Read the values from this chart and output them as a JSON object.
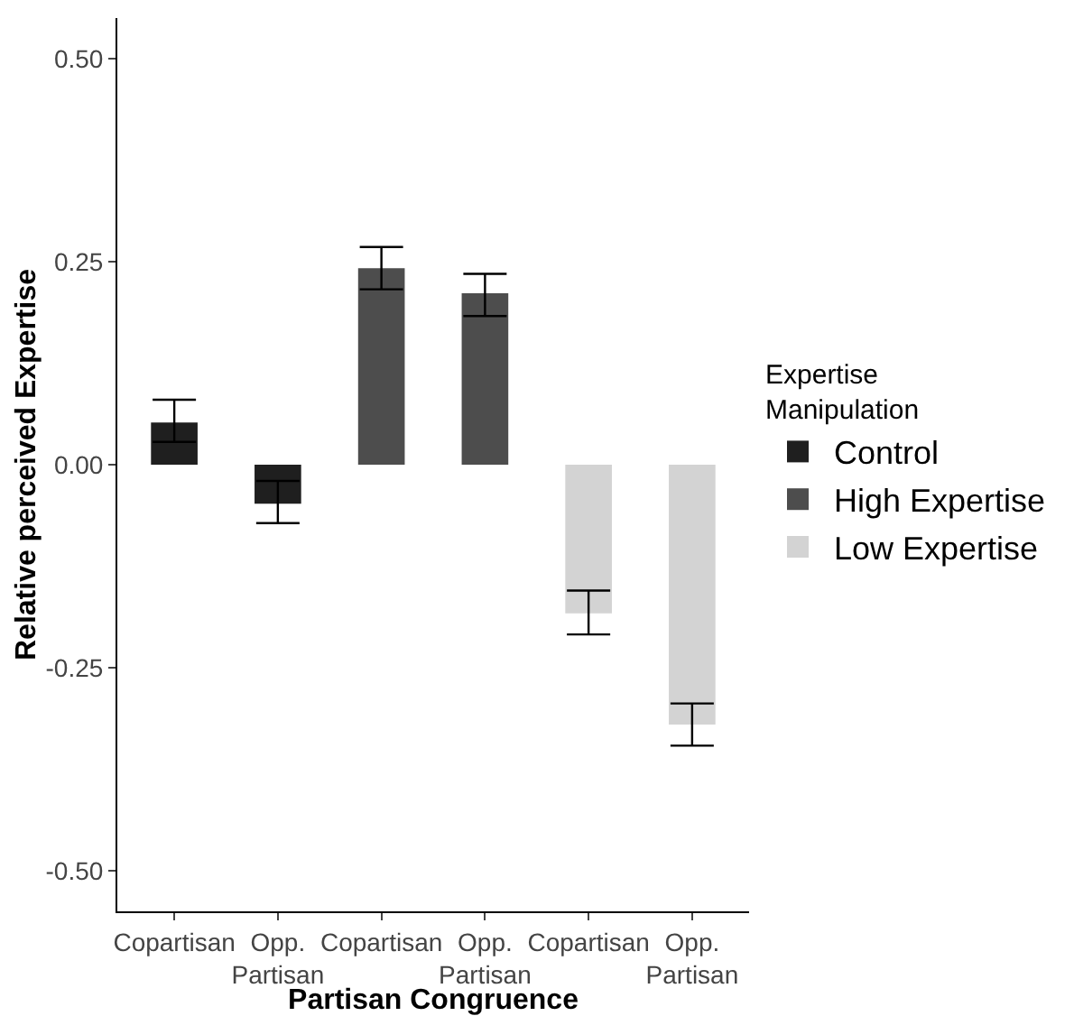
{
  "chart_data": {
    "type": "bar",
    "xlabel": "Partisan Congruence",
    "ylabel": "Relative perceived Expertise",
    "legend_title": "Expertise\nManipulation",
    "categories": [
      "Copartisan",
      "Opp.\nPartisan",
      "Copartisan",
      "Opp.\nPartisan",
      "Copartisan",
      "Opp.\nPartisan"
    ],
    "series": [
      {
        "name": "Control",
        "color": "#1f1f1f",
        "values": [
          0.052,
          -0.048,
          null,
          null,
          null,
          null
        ],
        "errors": [
          [
            0.028,
            0.08
          ],
          [
            -0.072,
            -0.02
          ],
          null,
          null,
          null,
          null
        ]
      },
      {
        "name": "High Expertise",
        "color": "#4d4d4d",
        "values": [
          null,
          null,
          0.242,
          0.211,
          null,
          null
        ],
        "errors": [
          null,
          null,
          [
            0.216,
            0.268
          ],
          [
            0.183,
            0.235
          ],
          null,
          null
        ]
      },
      {
        "name": "Low Expertise",
        "color": "#d3d3d3",
        "values": [
          null,
          null,
          null,
          null,
          -0.183,
          -0.32
        ],
        "errors": [
          null,
          null,
          null,
          null,
          [
            -0.209,
            -0.155
          ],
          [
            -0.346,
            -0.294
          ]
        ]
      }
    ],
    "ylim": [
      -0.55,
      0.55
    ],
    "yticks": [
      {
        "value": -0.5,
        "label": "-0.50"
      },
      {
        "value": -0.25,
        "label": "-0.25"
      },
      {
        "value": 0,
        "label": "0.00"
      },
      {
        "value": 0.25,
        "label": "0.25"
      },
      {
        "value": 0.5,
        "label": "0.50"
      }
    ],
    "grid": false,
    "legend": "right"
  }
}
